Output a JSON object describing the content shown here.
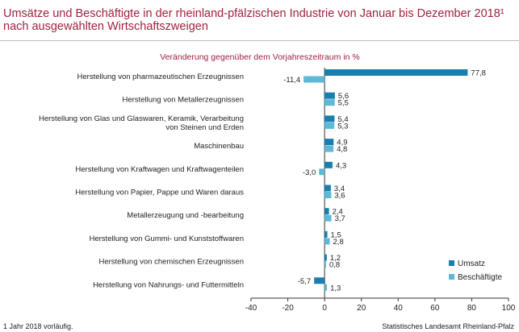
{
  "title": "Umsätze und Beschäftigte in der rheinland-pfälzischen Industrie von Januar bis Dezember 2018¹\nnach ausgewählten Wirtschaftszweigen",
  "footnote": "1 Jahr 2018 vorläufig.",
  "source": "Statistisches Landesamt Rheinland-Pfalz",
  "colors": {
    "umsatz": "#1a7fb0",
    "beschaeftigte": "#5fb8d6",
    "title": "#a0223f"
  },
  "chart_data": {
    "type": "bar",
    "orientation": "horizontal",
    "subtitle": "Veränderung gegenüber dem Vorjahreszeitraum in %",
    "categories": [
      "Herstellung von pharmazeutischen Erzeugnissen",
      "Herstellung von Metallerzeugnissen",
      "Herstellung von Glas und Glaswaren, Keramik, Verarbeitung von Steinen und Erden",
      "Maschinenbau",
      "Herstellung von Kraftwagen und Kraftwagenteilen",
      "Herstellung von Papier, Pappe und Waren daraus",
      "Metallerzeugung und -bearbeitung",
      "Herstellung von Gummi- und Kunststoffwaren",
      "Herstellung von chemischen Erzeugnissen",
      "Herstellung von Nahrungs- und Futtermitteln"
    ],
    "category_lines": [
      [
        "Herstellung von pharmazeutischen Erzeugnissen"
      ],
      [
        "Herstellung von Metallerzeugnissen"
      ],
      [
        "Herstellung von Glas und Glaswaren, Keramik, Verarbeitung",
        "von Steinen und Erden"
      ],
      [
        "Maschinenbau"
      ],
      [
        "Herstellung von Kraftwagen und Kraftwagenteilen"
      ],
      [
        "Herstellung von Papier, Pappe und Waren daraus"
      ],
      [
        "Metallerzeugung und -bearbeitung"
      ],
      [
        "Herstellung von Gummi- und Kunststoffwaren"
      ],
      [
        "Herstellung von chemischen Erzeugnissen"
      ],
      [
        "Herstellung von Nahrungs- und Futtermitteln"
      ]
    ],
    "series": [
      {
        "name": "Umsatz",
        "values": [
          77.8,
          5.6,
          5.4,
          4.9,
          4.3,
          3.4,
          2.4,
          1.5,
          1.2,
          -5.7
        ],
        "labels": [
          "77,8",
          "5,6",
          "5,4",
          "4,9",
          "4,3",
          "3,4",
          "2,4",
          "1,5",
          "1,2",
          "-5,7"
        ]
      },
      {
        "name": "Beschäftigte",
        "values": [
          -11.4,
          5.5,
          5.3,
          4.8,
          -3.0,
          3.6,
          3.7,
          2.8,
          0.8,
          1.3
        ],
        "labels": [
          "-11,4",
          "5,5",
          "5,3",
          "4,8",
          "-3,0",
          "3,6",
          "3,7",
          "2,8",
          "0,8",
          "1,3"
        ]
      }
    ],
    "xlim": [
      -40,
      100
    ],
    "xticks": [
      -40,
      -20,
      0,
      20,
      40,
      60,
      80,
      100
    ],
    "xtick_labels": [
      "-40",
      "-20",
      "0",
      "20",
      "40",
      "60",
      "80",
      "100"
    ],
    "grid": false,
    "legend_position": "bottom-right"
  }
}
